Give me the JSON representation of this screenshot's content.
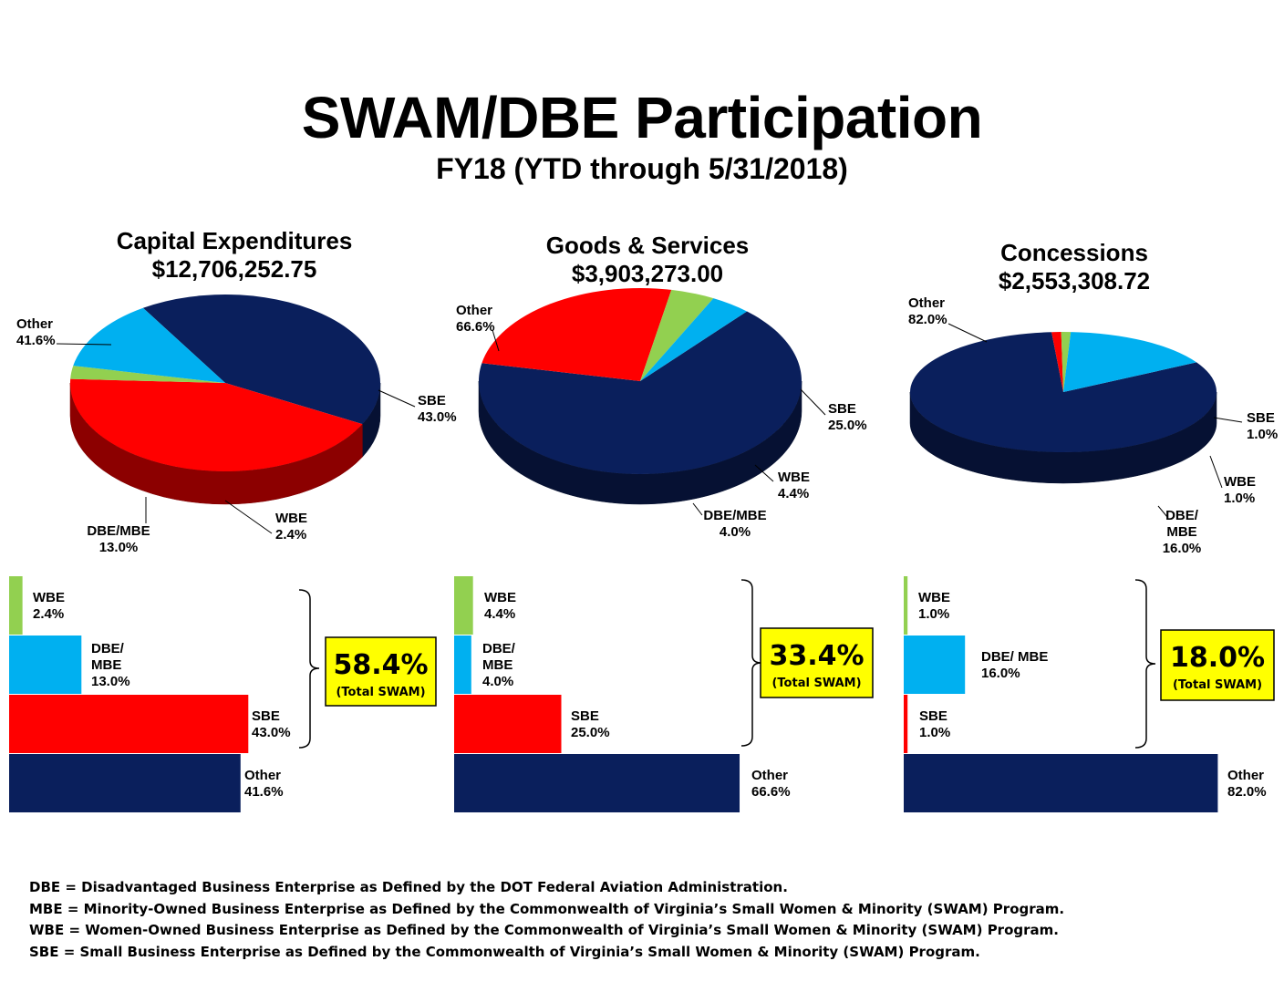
{
  "title": "SWAM/DBE Participation",
  "subtitle": "FY18 (YTD through 5/31/2018)",
  "colors": {
    "Other": "#0a1f5c",
    "SBE": "#ff0000",
    "WBE": "#92d050",
    "DBE/MBE": "#00b0f0",
    "callout_bg": "#ffff00"
  },
  "chart_data": [
    {
      "type": "pie",
      "title": "Capital Expenditures",
      "subtitle": "$12,706,252.75",
      "slices": [
        {
          "name": "Other",
          "value": 41.6,
          "label_lines": [
            "Other",
            "41.6%"
          ]
        },
        {
          "name": "SBE",
          "value": 43.0,
          "label_lines": [
            "SBE",
            "43.0%"
          ]
        },
        {
          "name": "WBE",
          "value": 2.4,
          "label_lines": [
            "WBE",
            "2.4%"
          ]
        },
        {
          "name": "DBE/MBE",
          "value": 13.0,
          "label_lines": [
            "DBE/MBE",
            "13.0%"
          ]
        }
      ],
      "bars": {
        "type": "bar",
        "categories": [
          "WBE",
          "DBE/MBE",
          "SBE",
          "Other"
        ],
        "values": [
          2.4,
          13.0,
          43.0,
          41.6
        ],
        "label_lines": [
          [
            "WBE",
            "2.4%"
          ],
          [
            "DBE/",
            "MBE",
            "13.0%"
          ],
          [
            "SBE",
            "43.0%"
          ],
          [
            "Other",
            "41.6%"
          ]
        ]
      },
      "total": {
        "value": "58.4%",
        "label": "(Total SWAM)"
      }
    },
    {
      "type": "pie",
      "title": "Goods & Services",
      "subtitle": "$3,903,273.00",
      "slices": [
        {
          "name": "Other",
          "value": 66.6,
          "label_lines": [
            "Other",
            "66.6%"
          ]
        },
        {
          "name": "SBE",
          "value": 25.0,
          "label_lines": [
            "SBE",
            "25.0%"
          ]
        },
        {
          "name": "WBE",
          "value": 4.4,
          "label_lines": [
            "WBE",
            "4.4%"
          ]
        },
        {
          "name": "DBE/MBE",
          "value": 4.0,
          "label_lines": [
            "DBE/MBE",
            "4.0%"
          ]
        }
      ],
      "bars": {
        "type": "bar",
        "categories": [
          "WBE",
          "DBE/MBE",
          "SBE",
          "Other"
        ],
        "values": [
          4.4,
          4.0,
          25.0,
          66.6
        ],
        "label_lines": [
          [
            "WBE",
            "4.4%"
          ],
          [
            "DBE/",
            "MBE",
            "4.0%"
          ],
          [
            "SBE",
            "25.0%"
          ],
          [
            "Other",
            "66.6%"
          ]
        ]
      },
      "total": {
        "value": "33.4%",
        "label": "(Total SWAM)"
      }
    },
    {
      "type": "pie",
      "title": "Concessions",
      "subtitle": "$2,553,308.72",
      "slices": [
        {
          "name": "Other",
          "value": 82.0,
          "label_lines": [
            "Other",
            "82.0%"
          ]
        },
        {
          "name": "SBE",
          "value": 1.0,
          "label_lines": [
            "SBE",
            "1.0%"
          ]
        },
        {
          "name": "WBE",
          "value": 1.0,
          "label_lines": [
            "WBE",
            "1.0%"
          ]
        },
        {
          "name": "DBE/MBE",
          "value": 16.0,
          "label_lines": [
            "DBE/",
            "MBE",
            "16.0%"
          ]
        }
      ],
      "bars": {
        "type": "bar",
        "categories": [
          "WBE",
          "DBE/MBE",
          "SBE",
          "Other"
        ],
        "values": [
          1.0,
          16.0,
          1.0,
          82.0
        ],
        "label_lines": [
          [
            "WBE",
            "1.0%"
          ],
          [
            "DBE/ MBE",
            "16.0%"
          ],
          [
            "SBE",
            "1.0%"
          ],
          [
            "Other",
            "82.0%"
          ]
        ]
      },
      "total": {
        "value": "18.0%",
        "label": "(Total SWAM)"
      }
    }
  ],
  "definitions": [
    "DBE = Disadvantaged Business Enterprise as Defined by the DOT Federal Aviation Administration.",
    "MBE = Minority-Owned Business Enterprise as Defined by the Commonwealth of Virginia’s Small Women & Minority (SWAM) Program.",
    "WBE = Women-Owned Business Enterprise as Defined by the Commonwealth of Virginia’s Small Women & Minority (SWAM) Program.",
    "SBE = Small Business Enterprise as Defined by the Commonwealth of Virginia’s Small Women & Minority (SWAM) Program."
  ]
}
